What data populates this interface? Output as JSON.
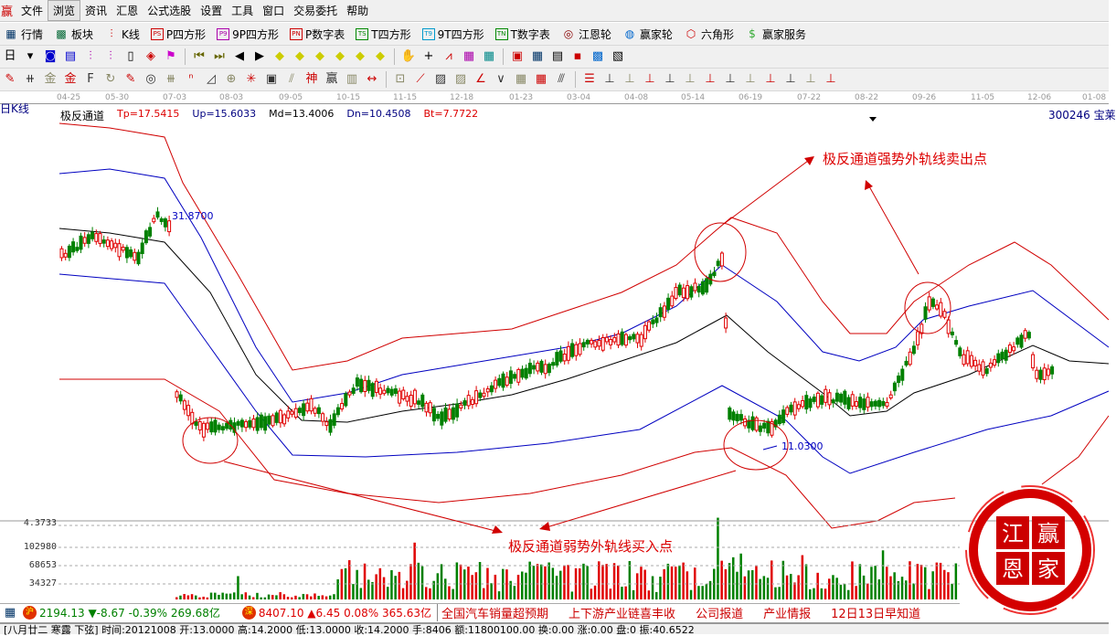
{
  "app_logo": "赢",
  "menu": [
    "文件",
    "浏览",
    "资讯",
    "汇恩",
    "公式选股",
    "设置",
    "工具",
    "窗口",
    "交易委托",
    "帮助"
  ],
  "active_menu": "浏览",
  "toolbar1": [
    {
      "icon": "grid-icon",
      "label": "行情"
    },
    {
      "icon": "blocks-icon",
      "label": "板块"
    },
    {
      "icon": "candlestick-icon",
      "label": "K线"
    },
    {
      "icon": "PS",
      "label": "P四方形"
    },
    {
      "icon": "P9",
      "label": "9P四方形"
    },
    {
      "icon": "PN",
      "label": "P数字表"
    },
    {
      "icon": "TS",
      "label": "T四方形"
    },
    {
      "icon": "T9",
      "label": "9T四方形"
    },
    {
      "icon": "TN",
      "label": "T数字表"
    },
    {
      "icon": "target-icon",
      "label": "江恩轮"
    },
    {
      "icon": "big-icon",
      "label": "赢家轮"
    },
    {
      "icon": "hexagon-icon",
      "label": "六角形"
    },
    {
      "icon": "dollar-icon",
      "label": "赢家服务"
    }
  ],
  "period_button": "日",
  "dates": [
    "04-25",
    "05-30",
    "07-03",
    "08-03",
    "09-05",
    "10-15",
    "11-15",
    "12-18",
    "01-23",
    "03-04",
    "04-08",
    "05-14",
    "06-19",
    "07-22",
    "08-22",
    "09-26",
    "11-05",
    "12-06",
    "01-08"
  ],
  "chart_label": "日K线",
  "indicator": {
    "name": "极反通道",
    "tp": "Tp=17.5415",
    "up": "Up=15.6033",
    "md": "Md=13.4006",
    "dn": "Dn=10.4508",
    "bt": "Bt=7.7722"
  },
  "stock_code": "300246 宝莱",
  "price_high_label": "31.8700",
  "price_low_label": "11.0300",
  "annotations": {
    "sell": "极反通道强势外轨线卖出点",
    "buy": "极反通道弱势外轨线买入点"
  },
  "volume_ticks": [
    "4.3733",
    "102980",
    "68653",
    "34327"
  ],
  "colors": {
    "upper_outer": "#d00000",
    "upper_inner": "#0000c0",
    "middle": "#000000",
    "up_candle": "#e00000",
    "down_candle": "#008000",
    "annotation": "#d00000"
  },
  "index_bar": {
    "sh": {
      "badge": "沪",
      "value": "2194.13",
      "change": "▼-8.67",
      "pct": "-0.39%",
      "amount": "269.68亿"
    },
    "sz": {
      "badge": "深",
      "value": "8407.10",
      "change": "▲6.45",
      "pct": "0.08%",
      "amount": "365.63亿"
    },
    "news": [
      "全国汽车销量超预期",
      "上下游产业链喜丰收",
      "公司报道",
      "产业情报",
      "12日13日早知道"
    ]
  },
  "status_text": "[八月廿二 寒露 下弦] 时间:20121008 开:13.0000 高:14.2000 低:13.0000 收:14.2000 手:8406 额:11800100.00 换:0.00 涨:0.00 盘:0 振:40.6522",
  "seal": {
    "chars": [
      "江",
      "赢",
      "恩",
      "家"
    ]
  }
}
